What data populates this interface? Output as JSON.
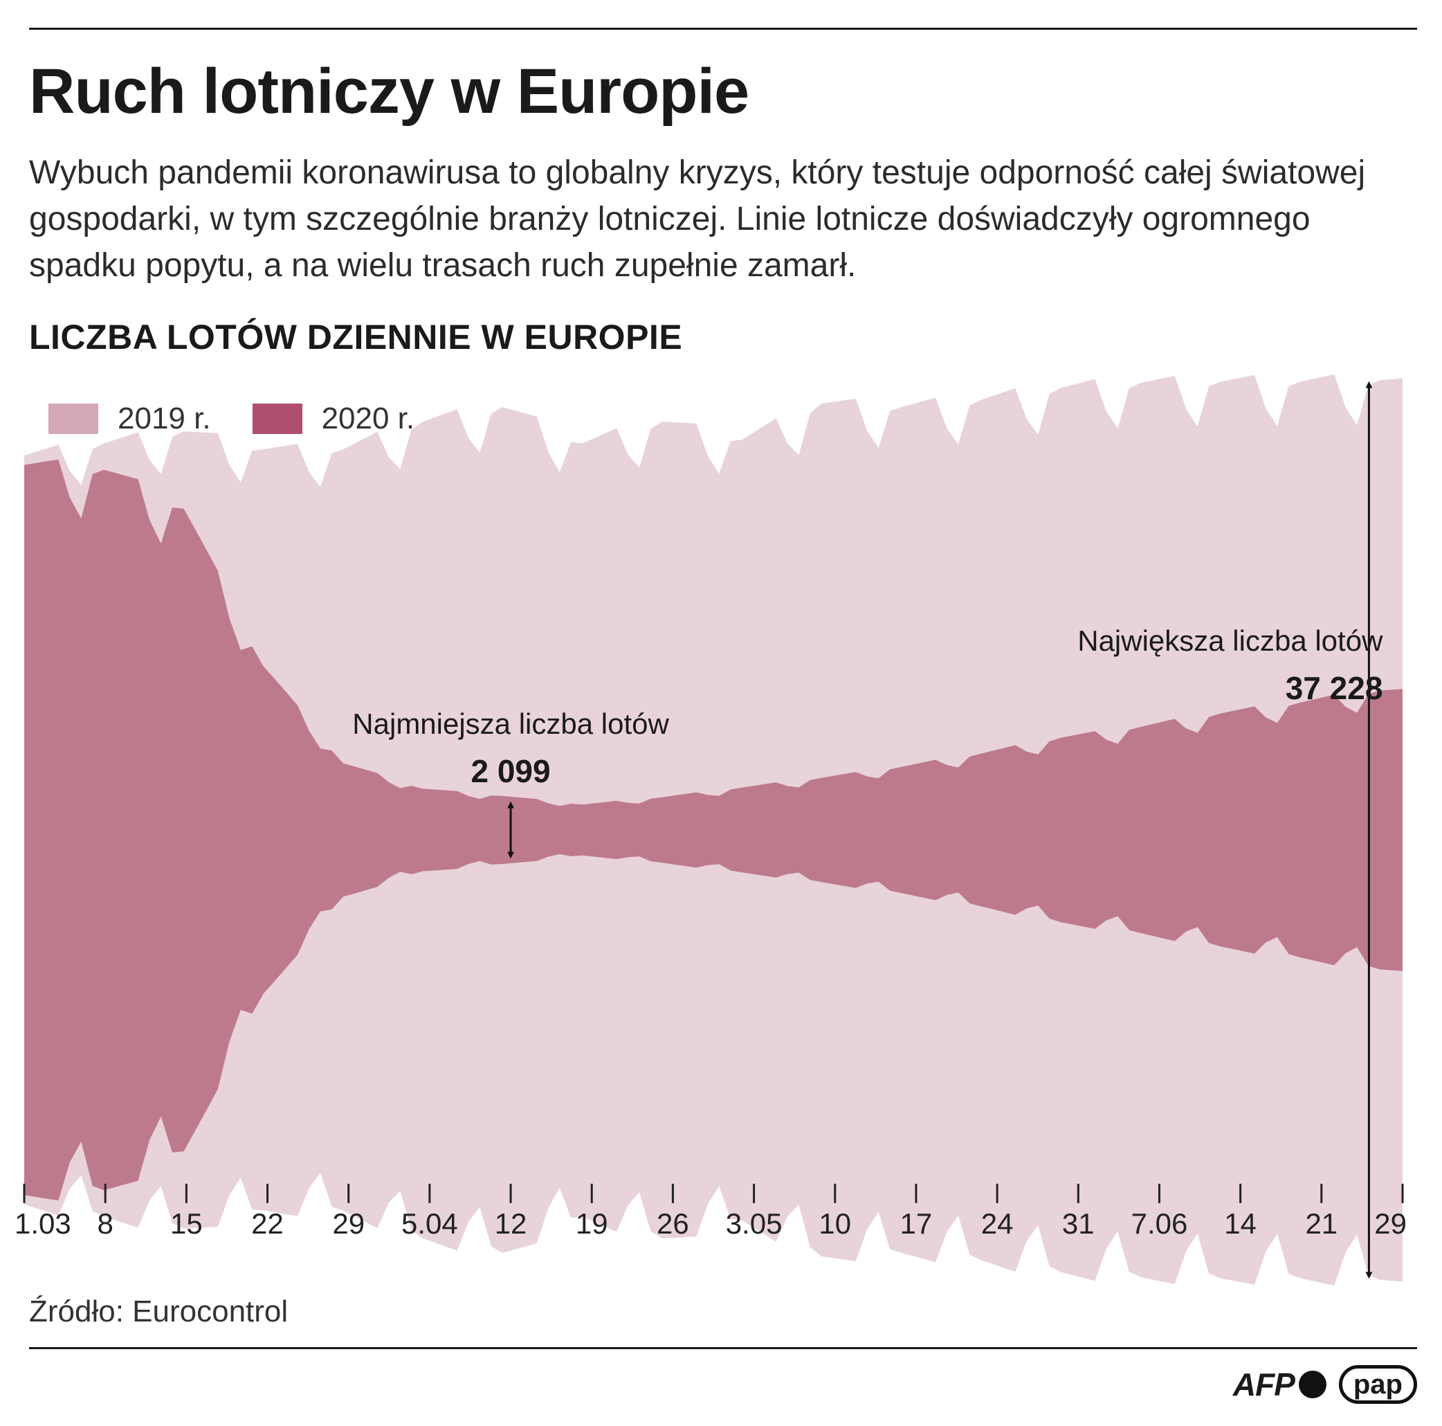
{
  "header": {
    "title": "Ruch lotniczy w Europie",
    "subtitle": "Wybuch pandemii koronawirusa to globalny kryzys, który testuje odporność całej światowej gospodarki, w tym szczególnie branży lotniczej. Linie lotnicze doświadczyły ogromnego spadku popytu, a na wielu trasach ruch zupełnie zamarł.",
    "chart_title": "LICZBA LOTÓW DZIENNIE W EUROPIE"
  },
  "legend": [
    {
      "label": "2019 r.",
      "color": "#d4a8b7"
    },
    {
      "label": "2020 r.",
      "color": "#b04e72"
    }
  ],
  "annotations": {
    "min_label": "Najmniejsza liczba lotów",
    "min_value": "2 099",
    "max_label": "Największa liczba lotów",
    "max_value": "37 228"
  },
  "footer": {
    "source": "Źródło: Eurocontrol",
    "logo_afp": "AFP",
    "logo_pap": "pap"
  },
  "chart_data": {
    "type": "area",
    "title": "LICZBA LOTÓW DZIENNIE W EUROPIE",
    "layout": "streamgraph, symmetric around center",
    "x_ticks": [
      "1.03",
      "8",
      "15",
      "22",
      "29",
      "5.04",
      "12",
      "19",
      "26",
      "3.05",
      "10",
      "17",
      "24",
      "31",
      "7.06",
      "14",
      "21",
      "29"
    ],
    "series": [
      {
        "name": "2019 r.",
        "color": "#e8d3da",
        "weekly_values": [
          31000,
          32000,
          33000,
          31500,
          31500,
          33800,
          35000,
          32000,
          33800,
          32300,
          35300,
          35000,
          35600,
          36600,
          37000,
          37100,
          37100,
          37228,
          36500
        ]
      },
      {
        "name": "2020 r.",
        "color": "#be7a8d",
        "weekly_values": [
          30100,
          29700,
          26500,
          13500,
          5500,
          3400,
          2800,
          2099,
          2700,
          3500,
          4300,
          5200,
          6300,
          7600,
          8500,
          9600,
          10500,
          11500,
          11400
        ]
      }
    ],
    "min": {
      "date": "12.04",
      "value": 2099
    },
    "max": {
      "date": "26.06",
      "value": 37228
    }
  }
}
